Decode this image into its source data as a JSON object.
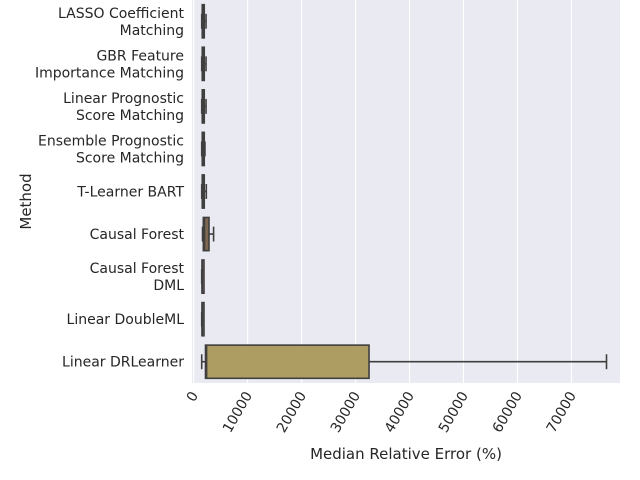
{
  "chart_data": {
    "type": "box",
    "orientation": "horizontal",
    "xlabel": "Median Relative Error (%)",
    "ylabel": "Method",
    "xlim": [
      -300,
      79000
    ],
    "xticks": [
      0,
      10000,
      20000,
      30000,
      40000,
      50000,
      60000,
      70000
    ],
    "xtick_labels": [
      "0",
      "10000",
      "20000",
      "30000",
      "40000",
      "50000",
      "60000",
      "70000"
    ],
    "xtick_rotation": -60,
    "grid": true,
    "background": "#eaeaf2",
    "categories": [
      {
        "label": "LASSO Coefficient\nMatching",
        "color": "#4c72b0",
        "whislo": 1500,
        "q1": 1600,
        "median": 1700,
        "q3": 1950,
        "whishi": 2300
      },
      {
        "label": "GBR Feature\nImportance Matching",
        "color": "#dd8452",
        "whislo": 1500,
        "q1": 1600,
        "median": 1700,
        "q3": 1950,
        "whishi": 2300
      },
      {
        "label": "Linear Prognostic\nScore Matching",
        "color": "#55a868",
        "whislo": 1500,
        "q1": 1600,
        "median": 1700,
        "q3": 1950,
        "whishi": 2300
      },
      {
        "label": "Ensemble Prognostic\nScore Matching",
        "color": "#c44e52",
        "whislo": 1500,
        "q1": 1600,
        "median": 1700,
        "q3": 1950,
        "whishi": 2100
      },
      {
        "label": "T-Learner BART",
        "color": "#8172b3",
        "whislo": 1500,
        "q1": 1600,
        "median": 1700,
        "q3": 1950,
        "whishi": 2350
      },
      {
        "label": "Causal Forest",
        "color": "#937860",
        "whislo": 1650,
        "q1": 1800,
        "median": 2000,
        "q3": 2850,
        "whishi": 3700
      },
      {
        "label": "Causal Forest\nDML",
        "color": "#da8bc3",
        "whislo": 1500,
        "q1": 1550,
        "median": 1600,
        "q3": 1700,
        "whishi": 1750
      },
      {
        "label": "Linear DoubleML",
        "color": "#8c8c8c",
        "whislo": 1500,
        "q1": 1550,
        "median": 1600,
        "q3": 1700,
        "whishi": 1750
      },
      {
        "label": "Linear DRLearner",
        "color": "#ccb974",
        "whislo": 1500,
        "q1": 2200,
        "median": 2400,
        "q3": 32500,
        "whishi": 76500
      }
    ]
  }
}
